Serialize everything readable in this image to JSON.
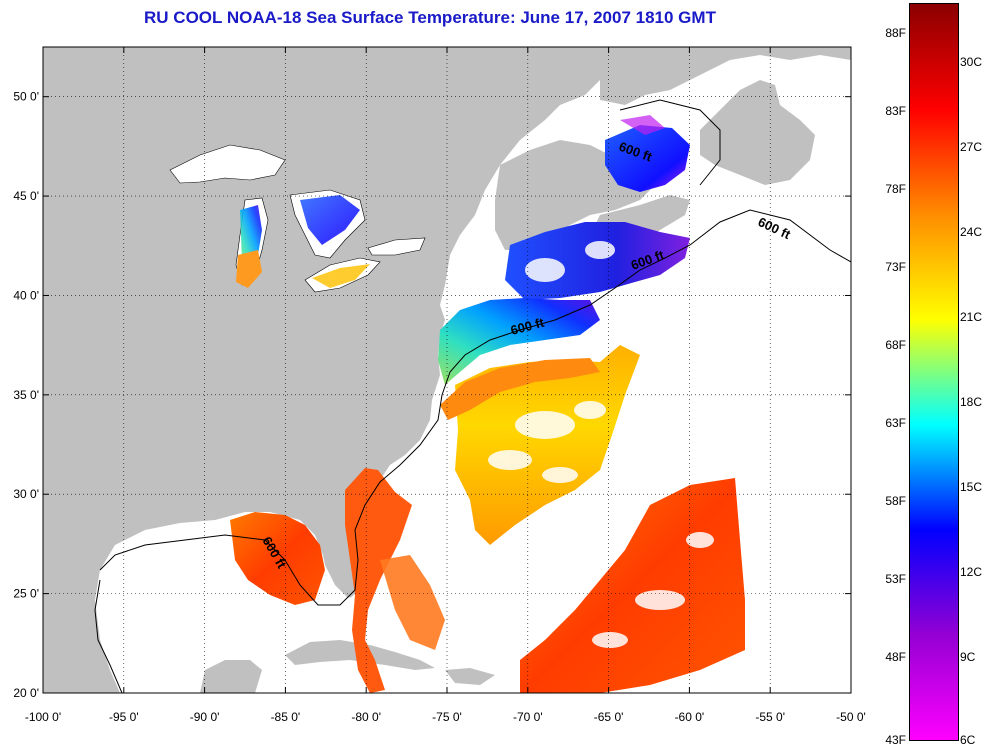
{
  "title": "RU COOL  NOAA-18  Sea Surface Temperature:  June 17, 2007 1810 GMT",
  "map": {
    "longitude_ticks": [
      "-100 0'",
      "-95 0'",
      "-90 0'",
      "-85 0'",
      "-80 0'",
      "-75 0'",
      "-70 0'",
      "-65 0'",
      "-60 0'",
      "-55 0'",
      "-50 0'"
    ],
    "latitude_ticks": [
      "50 0'",
      "45 0'",
      "40 0'",
      "35 0'",
      "30 0'",
      "25 0'",
      "20 0'"
    ],
    "lon_range": [
      -100,
      -50
    ],
    "lat_range": [
      20,
      52.5
    ],
    "contour_label": "600 ft",
    "land_color": "#c0c0c0",
    "ocean_nodata_color": "#ffffff"
  },
  "colorbar": {
    "fahrenheit_labels": [
      "88F",
      "83F",
      "78F",
      "73F",
      "68F",
      "63F",
      "58F",
      "53F",
      "48F",
      "43F"
    ],
    "celsius_labels": [
      "30C",
      "27C",
      "24C",
      "21C",
      "18C",
      "15C",
      "12C",
      "9C",
      "6C"
    ],
    "colors_top_to_bottom": [
      "#8b0000",
      "#ff0000",
      "#ff8c00",
      "#ffff00",
      "#00ffff",
      "#0000ff",
      "#9400d3",
      "#ff00ff"
    ]
  }
}
